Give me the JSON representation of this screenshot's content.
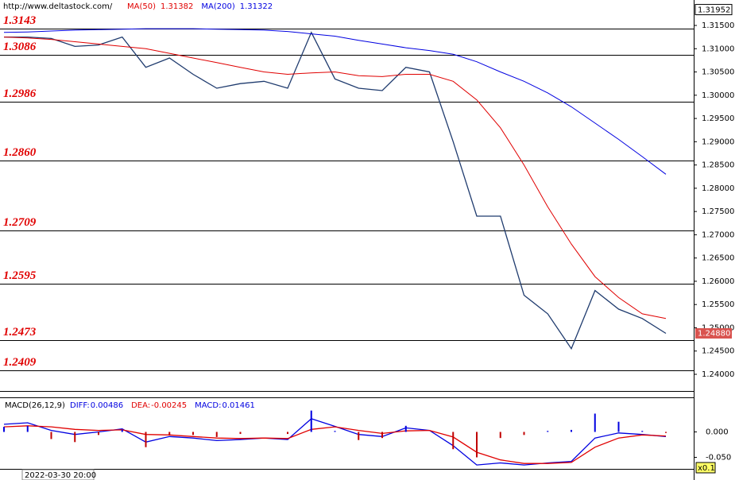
{
  "header": {
    "site": "http://www.deltastock.com/",
    "date": "2022-03-30 20:00"
  },
  "chart_data": [
    {
      "type": "line",
      "ylim": [
        1.23641,
        1.32047
      ],
      "yticks": [
        {
          "value": 1.24,
          "label": "1.24000"
        },
        {
          "value": 1.245,
          "label": "1.24500"
        },
        {
          "value": 1.25,
          "label": "1.25000"
        },
        {
          "value": 1.255,
          "label": "1.25500"
        },
        {
          "value": 1.26,
          "label": "1.26000"
        },
        {
          "value": 1.265,
          "label": "1.26500"
        },
        {
          "value": 1.27,
          "label": "1.27000"
        },
        {
          "value": 1.275,
          "label": "1.27500"
        },
        {
          "value": 1.28,
          "label": "1.28000"
        },
        {
          "value": 1.285,
          "label": "1.28500"
        },
        {
          "value": 1.29,
          "label": "1.29000"
        },
        {
          "value": 1.295,
          "label": "1.29500"
        },
        {
          "value": 1.3,
          "label": "1.30000"
        },
        {
          "value": 1.305,
          "label": "1.30500"
        },
        {
          "value": 1.31,
          "label": "1.31000"
        },
        {
          "value": 1.315,
          "label": "1.31500"
        }
      ],
      "high_label": {
        "value": 1.31952,
        "label": "1.31952"
      },
      "last_price": {
        "value": 1.2488,
        "label": "1.24880"
      },
      "levels": [
        {
          "value": 1.3143,
          "label": "1.3143"
        },
        {
          "value": 1.3086,
          "label": "1.3086"
        },
        {
          "value": 1.2986,
          "label": "1.2986"
        },
        {
          "value": 1.286,
          "label": "1.2860"
        },
        {
          "value": 1.2709,
          "label": "1.2709"
        },
        {
          "value": 1.2595,
          "label": "1.2595"
        },
        {
          "value": 1.2473,
          "label": "1.2473"
        },
        {
          "value": 1.2409,
          "label": "1.2409"
        }
      ],
      "level_color": "#e00000",
      "series": [
        {
          "color": "#1f3b6e",
          "values": [
            1.3125,
            1.3125,
            1.3122,
            1.3105,
            1.3108,
            1.3125,
            1.306,
            1.308,
            1.3045,
            1.3015,
            1.3025,
            1.303,
            1.3015,
            1.3135,
            1.3035,
            1.3015,
            1.301,
            1.306,
            1.305,
            1.29,
            1.274,
            1.274,
            1.257,
            1.253,
            1.2455,
            1.258,
            1.254,
            1.252,
            1.2488
          ]
        },
        {
          "name": "MA(50)",
          "legend_value": 1.31382,
          "color": "#e00000",
          "values": [
            1.3125,
            1.3123,
            1.312,
            1.3115,
            1.311,
            1.3105,
            1.31,
            1.309,
            1.308,
            1.307,
            1.306,
            1.305,
            1.3045,
            1.3048,
            1.305,
            1.3042,
            1.304,
            1.3045,
            1.3045,
            1.303,
            1.299,
            1.293,
            1.285,
            1.276,
            1.268,
            1.261,
            1.2565,
            1.253,
            1.252
          ]
        },
        {
          "name": "MA(200)",
          "legend_value": 1.31322,
          "color": "#0000e0",
          "values": [
            1.3135,
            1.3136,
            1.3138,
            1.314,
            1.3141,
            1.3142,
            1.3143,
            1.3143,
            1.3143,
            1.3142,
            1.3141,
            1.314,
            1.3137,
            1.3132,
            1.3127,
            1.3118,
            1.311,
            1.3102,
            1.3096,
            1.3088,
            1.3072,
            1.305,
            1.303,
            1.3005,
            1.2975,
            1.294,
            1.2905,
            1.2868,
            1.283
          ]
        }
      ]
    },
    {
      "type": "macd",
      "title": "MACD(26,12,9)",
      "scale_label": "x0.1",
      "ylim": [
        -0.0727,
        0.068
      ],
      "yticks": [
        {
          "value": 0,
          "label": "0.000"
        },
        {
          "value": -0.05,
          "label": "-0.050"
        }
      ],
      "series": [
        {
          "name": "DIFF:",
          "legend_value": 0.00486,
          "color": "#0000e0",
          "values": [
            0.015,
            0.018,
            0.003,
            -0.005,
            0,
            0.006,
            -0.02,
            -0.009,
            -0.012,
            -0.017,
            -0.015,
            -0.012,
            -0.015,
            0.026,
            0.011,
            -0.005,
            -0.009,
            0.008,
            0.003,
            -0.027,
            -0.065,
            -0.061,
            -0.065,
            -0.061,
            -0.058,
            -0.012,
            -0.002,
            -0.005,
            -0.009
          ]
        },
        {
          "name": "DEA:",
          "legend_value": -0.00245,
          "color": "#e00000",
          "values": [
            0.01,
            0.012,
            0.01,
            0.005,
            0.003,
            0.004,
            -0.005,
            -0.006,
            -0.009,
            -0.012,
            -0.013,
            -0.012,
            -0.013,
            0.005,
            0.01,
            0.003,
            -0.003,
            0.002,
            0.003,
            -0.01,
            -0.04,
            -0.055,
            -0.062,
            -0.062,
            -0.06,
            -0.03,
            -0.012,
            -0.006,
            -0.008
          ]
        },
        {
          "name": "MACD:",
          "legend_value": 0.01461,
          "color": "#0000e0",
          "negative_color": "#c00000",
          "bars": true,
          "values": [
            0.01,
            0.012,
            -0.014,
            -0.02,
            -0.006,
            0.004,
            -0.03,
            -0.006,
            -0.006,
            -0.01,
            -0.004,
            0,
            -0.004,
            0.042,
            0.002,
            -0.016,
            -0.012,
            0.012,
            0,
            -0.034,
            -0.05,
            -0.012,
            -0.006,
            0.002,
            0.004,
            0.036,
            0.02,
            0.002,
            -0.002
          ]
        }
      ]
    }
  ]
}
